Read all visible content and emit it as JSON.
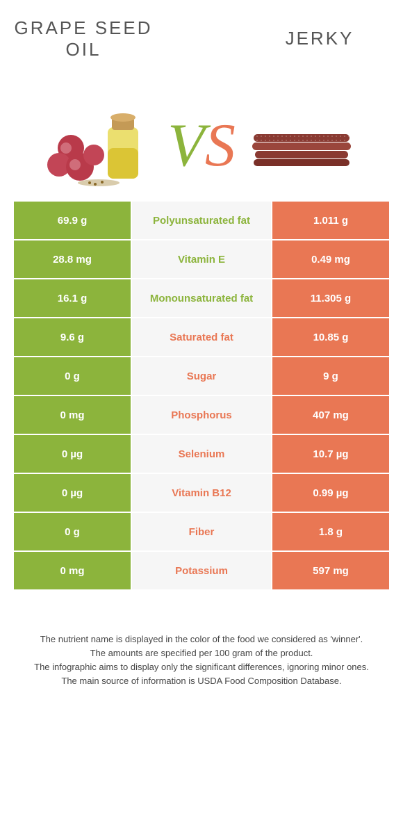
{
  "titles": {
    "left": "GRAPE SEED\nOIL",
    "right": "JERKY"
  },
  "vs": {
    "v": "V",
    "s": "S"
  },
  "colors": {
    "green": "#8cb43c",
    "orange": "#e97754",
    "rowbg": "#f6f6f6",
    "text": "#555555",
    "footer": "#444444"
  },
  "table": {
    "rows": [
      {
        "left": "69.9 g",
        "label": "Polyunsaturated fat",
        "labelColor": "green",
        "right": "1.011 g"
      },
      {
        "left": "28.8 mg",
        "label": "Vitamin E",
        "labelColor": "green",
        "right": "0.49 mg"
      },
      {
        "left": "16.1 g",
        "label": "Monounsaturated fat",
        "labelColor": "green",
        "right": "11.305 g"
      },
      {
        "left": "9.6 g",
        "label": "Saturated fat",
        "labelColor": "orange",
        "right": "10.85 g"
      },
      {
        "left": "0 g",
        "label": "Sugar",
        "labelColor": "orange",
        "right": "9 g"
      },
      {
        "left": "0 mg",
        "label": "Phosphorus",
        "labelColor": "orange",
        "right": "407 mg"
      },
      {
        "left": "0 µg",
        "label": "Selenium",
        "labelColor": "orange",
        "right": "10.7 µg"
      },
      {
        "left": "0 µg",
        "label": "Vitamin B12",
        "labelColor": "orange",
        "right": "0.99 µg"
      },
      {
        "left": "0 g",
        "label": "Fiber",
        "labelColor": "orange",
        "right": "1.8 g"
      },
      {
        "left": "0 mg",
        "label": "Potassium",
        "labelColor": "orange",
        "right": "597 mg"
      }
    ]
  },
  "footer": {
    "l1": "The nutrient name is displayed in the color of the food we considered as 'winner'.",
    "l2": "The amounts are specified per 100 gram of the product.",
    "l3": "The infographic aims to display only the significant differences, ignoring minor ones.",
    "l4": "The main source of information is USDA Food Composition Database."
  }
}
